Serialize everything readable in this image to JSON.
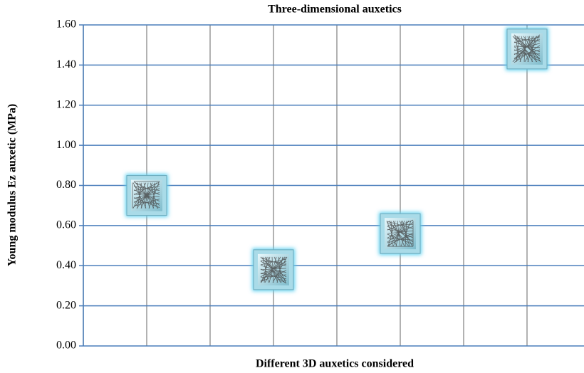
{
  "chart_data": {
    "type": "scatter",
    "title": "Three-dimensional auxetics",
    "x_label": "Different 3D auxetics considered",
    "y_label": "Young modulus Ez auxetic (MPa)",
    "x": [
      1,
      3,
      5,
      7
    ],
    "values": [
      0.75,
      0.38,
      0.56,
      1.48
    ],
    "color": "#a9dbe8",
    "xlim": [
      0,
      8
    ],
    "xticks": [
      0,
      1,
      2,
      3,
      4,
      5,
      6,
      7,
      8
    ],
    "ylim": [
      0,
      1.6
    ],
    "yticks": [
      {
        "value": 0,
        "label": "0.00"
      },
      {
        "value": 0.2,
        "label": "0.20"
      },
      {
        "value": 0.4,
        "label": "0.40"
      },
      {
        "value": 0.6,
        "label": "0.60"
      },
      {
        "value": 0.8,
        "label": "0.80"
      },
      {
        "value": 1.0,
        "label": "1.00"
      },
      {
        "value": 1.2,
        "label": "1.20"
      },
      {
        "value": 1.4,
        "label": "1.40"
      },
      {
        "value": 1.6,
        "label": "1.60"
      }
    ],
    "grid": true
  }
}
